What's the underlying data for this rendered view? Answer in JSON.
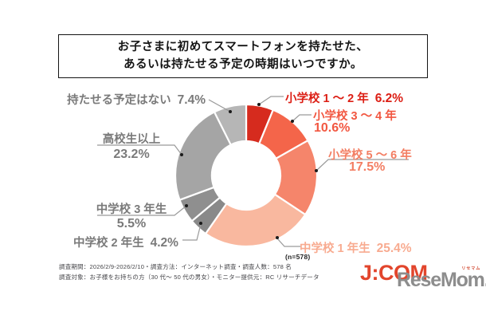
{
  "title": {
    "line1": "お子さまに初めてスマートフォンを持たせた、",
    "line2": "あるいは持たせる予定の時期はいつですか。"
  },
  "chart_data": {
    "type": "pie",
    "subtype": "donut",
    "start_angle_deg": 0,
    "direction": "clockwise",
    "sample_label": "(n=578)",
    "segments": [
      {
        "label": "小学校 1 〜 2 年",
        "pct": "6.2%",
        "value": 6.2,
        "color": "#d62b1e",
        "text_color": "#dc1e14"
      },
      {
        "label": "小学校 3 〜 4 年",
        "pct": "10.6%",
        "value": 10.6,
        "color": "#f4654a",
        "text_color": "#f25741"
      },
      {
        "label": "小学校 5 〜 6 年",
        "pct": "17.5%",
        "value": 17.5,
        "color": "#f5856b",
        "text_color": "#f37e63"
      },
      {
        "label": "中学校 1 年生",
        "pct": "25.4%",
        "value": 25.4,
        "color": "#f9b89f",
        "text_color": "#f8ab90"
      },
      {
        "label": "中学校 2 年生",
        "pct": "4.2%",
        "value": 4.2,
        "color": "#898989",
        "text_color": "#7a7a7a"
      },
      {
        "label": "中学校 3 年生",
        "pct": "5.5%",
        "value": 5.5,
        "color": "#8f8f8f",
        "text_color": "#7a7a7a"
      },
      {
        "label": "高校生以上",
        "pct": "23.2%",
        "value": 23.2,
        "color": "#a5a5a5",
        "text_color": "#7a7a7a"
      },
      {
        "label": "持たせる予定はない",
        "pct": "7.4%",
        "value": 7.4,
        "color": "#b6b6b6",
        "text_color": "#7a7a7a"
      }
    ]
  },
  "footnotes": {
    "line1": "調査期間：2026/2/9-2026/2/10・調査方法：インターネット調査・調査人数：578 名",
    "line2": "調査対象：お子様をお持ちの方（30 代〜 50 代の男女）・モニター提供元：RC リサーチデータ"
  },
  "logos": {
    "jcom": "J:COM",
    "resemom": "ReseMom.",
    "resemom_kana": "リセマム"
  }
}
